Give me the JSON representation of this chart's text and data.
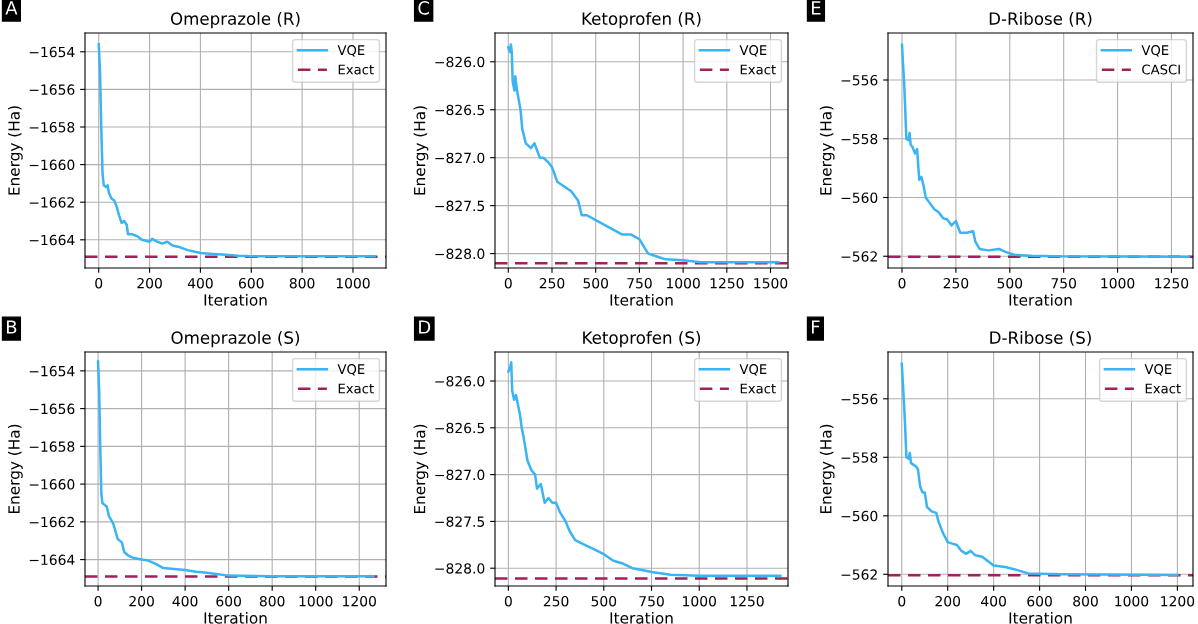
{
  "chart_data": [
    {
      "type": "line",
      "title": "Omeprazole (R)",
      "xlabel": "Iteration",
      "ylabel": "Energy (Ha)",
      "annotations": [
        "A"
      ],
      "grid": true,
      "legend": "top right",
      "xlim": [
        -54,
        1130
      ],
      "xticks": [
        0,
        200,
        400,
        600,
        800,
        1000
      ],
      "ylim": [
        -1665.5,
        -1653.0
      ],
      "yticks": [
        -1664,
        -1662,
        -1660,
        -1658,
        -1656,
        -1654
      ],
      "series": [
        {
          "name": "VQE",
          "color": "#3ab4f2",
          "x": [
            0,
            5,
            10,
            15,
            20,
            30,
            35,
            40,
            50,
            60,
            70,
            80,
            90,
            100,
            110,
            115,
            130,
            150,
            170,
            200,
            210,
            230,
            250,
            270,
            290,
            320,
            350,
            400,
            450,
            500,
            550,
            600,
            800,
            1085
          ],
          "values": [
            -1653.6,
            -1655,
            -1658,
            -1660.5,
            -1661.1,
            -1661.2,
            -1661.1,
            -1661.5,
            -1661.8,
            -1661.9,
            -1662.2,
            -1662.7,
            -1663.1,
            -1663.0,
            -1663.2,
            -1663.7,
            -1663.7,
            -1663.8,
            -1664.0,
            -1664.1,
            -1663.95,
            -1664.1,
            -1664.2,
            -1664.1,
            -1664.3,
            -1664.4,
            -1664.55,
            -1664.7,
            -1664.75,
            -1664.8,
            -1664.85,
            -1664.87,
            -1664.88,
            -1664.88
          ]
        }
      ],
      "ref_lines": [
        {
          "axis": "y",
          "value": -1664.9,
          "label": "Exact",
          "color": "#a3215a",
          "line_style": "dashed"
        }
      ]
    },
    {
      "type": "line",
      "title": "Ketoprofen (R)",
      "xlabel": "Iteration",
      "ylabel": "Energy (Ha)",
      "annotations": [
        "C"
      ],
      "grid": true,
      "legend": "top right",
      "xlim": [
        -76,
        1600
      ],
      "xticks": [
        0,
        250,
        500,
        750,
        1000,
        1250,
        1500
      ],
      "ylim": [
        -828.15,
        -825.7
      ],
      "yticks": [
        {
          "value": -828.0,
          "label": "−828.0"
        },
        {
          "value": -827.5,
          "label": "−827.5"
        },
        {
          "value": -827.0,
          "label": "−827.0"
        },
        {
          "value": -826.5,
          "label": "−826.5"
        },
        {
          "value": -826.0,
          "label": "−826.0"
        }
      ],
      "series": [
        {
          "name": "VQE",
          "color": "#3ab4f2",
          "x": [
            0,
            10,
            15,
            20,
            25,
            35,
            40,
            50,
            60,
            70,
            80,
            100,
            130,
            150,
            180,
            200,
            230,
            250,
            280,
            320,
            360,
            400,
            420,
            450,
            500,
            550,
            600,
            650,
            700,
            750,
            800,
            850,
            900,
            1000,
            1100,
            1250,
            1545
          ],
          "values": [
            -825.85,
            -825.9,
            -825.82,
            -825.9,
            -826.2,
            -826.3,
            -826.15,
            -826.3,
            -826.4,
            -826.5,
            -826.7,
            -826.85,
            -826.9,
            -826.85,
            -827.0,
            -827.0,
            -827.05,
            -827.1,
            -827.25,
            -827.3,
            -827.35,
            -827.45,
            -827.6,
            -827.6,
            -827.65,
            -827.7,
            -827.75,
            -827.8,
            -827.8,
            -827.85,
            -828.0,
            -828.03,
            -828.06,
            -828.07,
            -828.09,
            -828.09,
            -828.09
          ]
        }
      ],
      "ref_lines": [
        {
          "axis": "y",
          "value": -828.1,
          "label": "Exact",
          "color": "#a3215a",
          "line_style": "dashed"
        }
      ]
    },
    {
      "type": "line",
      "title": "D-Ribose (R)",
      "xlabel": "Iteration",
      "ylabel": "Energy (Ha)",
      "annotations": [
        "E"
      ],
      "grid": true,
      "legend": "top right",
      "xlim": [
        -65,
        1350
      ],
      "xticks": [
        0,
        250,
        500,
        750,
        1000,
        1250
      ],
      "ylim": [
        -562.4,
        -554.4
      ],
      "yticks": [
        -562,
        -560,
        -558,
        -556
      ],
      "series": [
        {
          "name": "VQE",
          "color": "#3ab4f2",
          "x": [
            0,
            5,
            10,
            15,
            20,
            30,
            35,
            40,
            50,
            60,
            70,
            80,
            90,
            100,
            110,
            130,
            150,
            170,
            190,
            210,
            230,
            250,
            270,
            300,
            330,
            340,
            360,
            400,
            450,
            480,
            520,
            600,
            700,
            1330
          ],
          "values": [
            -554.8,
            -555.5,
            -556.1,
            -557,
            -558,
            -558.05,
            -557.8,
            -558.2,
            -558.3,
            -558.5,
            -558.35,
            -559.4,
            -559.3,
            -559.6,
            -560.0,
            -560.2,
            -560.4,
            -560.5,
            -560.7,
            -560.75,
            -560.95,
            -560.8,
            -561.2,
            -561.2,
            -561.15,
            -561.5,
            -561.75,
            -561.8,
            -561.75,
            -561.85,
            -561.95,
            -561.98,
            -562.0,
            -562.02
          ]
        }
      ],
      "ref_lines": [
        {
          "axis": "y",
          "value": -562.02,
          "label": "CASCI",
          "color": "#a3215a",
          "line_style": "dashed"
        }
      ]
    },
    {
      "type": "line",
      "title": "Omeprazole (S)",
      "xlabel": "Iteration",
      "ylabel": "Energy (Ha)",
      "annotations": [
        "B"
      ],
      "grid": true,
      "legend": "top right",
      "xlim": [
        -60,
        1323
      ],
      "xticks": [
        0,
        200,
        400,
        600,
        800,
        1000,
        1200
      ],
      "ylim": [
        -1665.4,
        -1653.0
      ],
      "yticks": [
        -1664,
        -1662,
        -1660,
        -1658,
        -1656,
        -1654
      ],
      "series": [
        {
          "name": "VQE",
          "color": "#3ab4f2",
          "x": [
            0,
            5,
            10,
            15,
            20,
            30,
            40,
            50,
            70,
            80,
            90,
            110,
            120,
            140,
            160,
            200,
            230,
            260,
            300,
            350,
            400,
            450,
            500,
            600,
            800,
            1265
          ],
          "values": [
            -1653.5,
            -1655,
            -1658,
            -1660.5,
            -1661,
            -1661.1,
            -1661.2,
            -1661.7,
            -1662.1,
            -1662.5,
            -1662.9,
            -1663.1,
            -1663.6,
            -1663.8,
            -1663.9,
            -1664.0,
            -1664.05,
            -1664.2,
            -1664.45,
            -1664.5,
            -1664.55,
            -1664.65,
            -1664.7,
            -1664.85,
            -1664.88,
            -1664.88
          ]
        }
      ],
      "ref_lines": [
        {
          "axis": "y",
          "value": -1664.9,
          "label": "Exact",
          "color": "#a3215a",
          "line_style": "dashed"
        }
      ]
    },
    {
      "type": "line",
      "title": "Ketoprofen (S)",
      "xlabel": "Iteration",
      "ylabel": "Energy (Ha)",
      "annotations": [
        "D"
      ],
      "grid": true,
      "legend": "top right",
      "xlim": [
        -70,
        1465
      ],
      "xticks": [
        0,
        250,
        500,
        750,
        1000,
        1250
      ],
      "ylim": [
        -828.19,
        -825.69
      ],
      "yticks": [
        {
          "value": -828.0,
          "label": "−828.0"
        },
        {
          "value": -827.5,
          "label": "−827.5"
        },
        {
          "value": -827.0,
          "label": "−827.0"
        },
        {
          "value": -826.5,
          "label": "−826.5"
        },
        {
          "value": -826.0,
          "label": "−826.0"
        }
      ],
      "series": [
        {
          "name": "VQE",
          "color": "#3ab4f2",
          "x": [
            0,
            10,
            15,
            20,
            30,
            40,
            50,
            60,
            70,
            80,
            100,
            120,
            140,
            150,
            170,
            190,
            210,
            230,
            250,
            270,
            300,
            320,
            350,
            400,
            450,
            500,
            550,
            600,
            650,
            700,
            750,
            850,
            1000,
            1425
          ],
          "values": [
            -825.9,
            -825.85,
            -825.8,
            -826.1,
            -826.2,
            -826.15,
            -826.25,
            -826.35,
            -826.5,
            -826.6,
            -826.85,
            -826.95,
            -827.0,
            -827.15,
            -827.1,
            -827.3,
            -827.25,
            -827.3,
            -827.3,
            -827.4,
            -827.5,
            -827.6,
            -827.7,
            -827.75,
            -827.8,
            -827.85,
            -827.92,
            -827.95,
            -828.0,
            -828.02,
            -828.04,
            -828.07,
            -828.08,
            -828.08
          ]
        }
      ],
      "ref_lines": [
        {
          "axis": "y",
          "value": -828.11,
          "label": "Exact",
          "color": "#a3215a",
          "line_style": "dashed"
        }
      ]
    },
    {
      "type": "line",
      "title": "D-Ribose (S)",
      "xlabel": "Iteration",
      "ylabel": "Energy (Ha)",
      "annotations": [
        "F"
      ],
      "grid": true,
      "legend": "top right",
      "xlim": [
        -60,
        1268
      ],
      "xticks": [
        0,
        200,
        400,
        600,
        800,
        1000,
        1200
      ],
      "ylim": [
        -562.4,
        -554.4
      ],
      "yticks": [
        -562,
        -560,
        -558,
        -556
      ],
      "series": [
        {
          "name": "VQE",
          "color": "#3ab4f2",
          "x": [
            0,
            5,
            10,
            15,
            20,
            30,
            35,
            40,
            60,
            70,
            80,
            90,
            100,
            110,
            130,
            150,
            160,
            180,
            200,
            220,
            240,
            260,
            280,
            300,
            320,
            350,
            400,
            450,
            500,
            550,
            600,
            700,
            1200
          ],
          "values": [
            -554.8,
            -555.5,
            -556.2,
            -557,
            -558,
            -558.05,
            -557.85,
            -558.2,
            -558.3,
            -558.4,
            -559.0,
            -559.2,
            -559.2,
            -559.7,
            -559.85,
            -559.9,
            -560.2,
            -560.6,
            -560.9,
            -560.95,
            -561.0,
            -561.2,
            -561.3,
            -561.2,
            -561.35,
            -561.4,
            -561.7,
            -561.75,
            -561.85,
            -561.97,
            -561.98,
            -562.0,
            -562.02
          ]
        }
      ],
      "ref_lines": [
        {
          "axis": "y",
          "value": -562.03,
          "label": "Exact",
          "color": "#a3215a",
          "line_style": "dashed"
        }
      ]
    }
  ]
}
